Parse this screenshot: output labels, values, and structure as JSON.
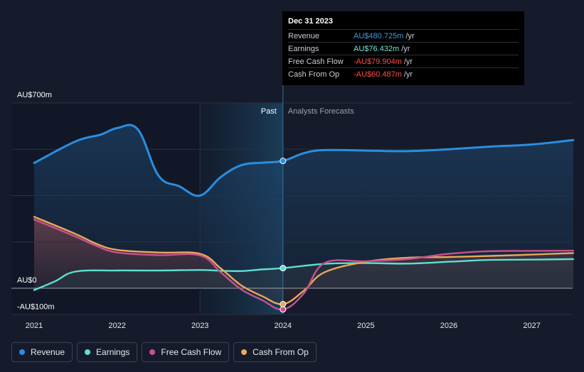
{
  "tooltip": {
    "date": "Dec 31 2023",
    "rows": [
      {
        "name": "Revenue",
        "value": "AU$480.725m",
        "unit": "/yr",
        "color": "#3d9be0"
      },
      {
        "name": "Earnings",
        "value": "AU$76.432m",
        "unit": "/yr",
        "color": "#7de3d3"
      },
      {
        "name": "Free Cash Flow",
        "value": "-AU$79.904m",
        "unit": "/yr",
        "color": "#ff4b4b"
      },
      {
        "name": "Cash From Op",
        "value": "-AU$60.487m",
        "unit": "/yr",
        "color": "#ff4b4b"
      }
    ]
  },
  "segments": {
    "past": "Past",
    "forecast": "Analysts Forecasts"
  },
  "legend": [
    {
      "label": "Revenue",
      "color": "#2a8ee0"
    },
    {
      "label": "Earnings",
      "color": "#5ee0cf"
    },
    {
      "label": "Free Cash Flow",
      "color": "#c8508f"
    },
    {
      "label": "Cash From Op",
      "color": "#e8a95a"
    }
  ],
  "chart_data": {
    "type": "line",
    "y_tick_labels": [
      "AU$700m",
      "AU$0",
      "-AU$100m"
    ],
    "ylim": [
      -100,
      700
    ],
    "xlim": [
      2021.0,
      2027.5
    ],
    "x_ticks": [
      2021,
      2022,
      2023,
      2024,
      2025,
      2026,
      2027
    ],
    "x_tick_labels": [
      "2021",
      "2022",
      "2023",
      "2024",
      "2025",
      "2026",
      "2027"
    ],
    "past_start": 2023.0,
    "past_end": 2024.0,
    "series": [
      {
        "name": "Revenue",
        "color": "#2a8ee0",
        "points": [
          [
            2021.0,
            473
          ],
          [
            2021.5,
            555
          ],
          [
            2021.8,
            580
          ],
          [
            2022.0,
            605
          ],
          [
            2022.25,
            600
          ],
          [
            2022.5,
            425
          ],
          [
            2022.75,
            385
          ],
          [
            2023.0,
            350
          ],
          [
            2023.25,
            420
          ],
          [
            2023.5,
            465
          ],
          [
            2023.75,
            474
          ],
          [
            2024.0,
            481
          ],
          [
            2024.25,
            510
          ],
          [
            2024.5,
            522
          ],
          [
            2025.0,
            520
          ],
          [
            2025.5,
            518
          ],
          [
            2026.0,
            525
          ],
          [
            2026.5,
            535
          ],
          [
            2027.0,
            543
          ],
          [
            2027.5,
            560
          ]
        ]
      },
      {
        "name": "Earnings",
        "color": "#5ee0cf",
        "points": [
          [
            2021.0,
            -7
          ],
          [
            2021.25,
            26
          ],
          [
            2021.5,
            63
          ],
          [
            2022.0,
            67
          ],
          [
            2022.5,
            67
          ],
          [
            2023.0,
            69
          ],
          [
            2023.25,
            66
          ],
          [
            2023.5,
            65
          ],
          [
            2023.75,
            71
          ],
          [
            2024.0,
            76
          ],
          [
            2024.5,
            92
          ],
          [
            2025.0,
            95
          ],
          [
            2025.5,
            93
          ],
          [
            2026.0,
            100
          ],
          [
            2026.5,
            107
          ],
          [
            2027.0,
            108
          ],
          [
            2027.5,
            110
          ]
        ]
      },
      {
        "name": "Free Cash Flow",
        "color": "#c8508f",
        "points": [
          [
            2021.0,
            260
          ],
          [
            2021.5,
            195
          ],
          [
            2021.75,
            160
          ],
          [
            2022.0,
            135
          ],
          [
            2022.5,
            125
          ],
          [
            2023.0,
            124
          ],
          [
            2023.25,
            60
          ],
          [
            2023.5,
            -5
          ],
          [
            2023.75,
            -45
          ],
          [
            2024.0,
            -80
          ],
          [
            2024.25,
            -20
          ],
          [
            2024.5,
            95
          ],
          [
            2025.0,
            102
          ],
          [
            2025.5,
            110
          ],
          [
            2026.0,
            130
          ],
          [
            2026.5,
            140
          ],
          [
            2027.0,
            141
          ],
          [
            2027.5,
            142
          ]
        ]
      },
      {
        "name": "Cash From Op",
        "color": "#e8a95a",
        "points": [
          [
            2021.0,
            270
          ],
          [
            2021.5,
            205
          ],
          [
            2021.75,
            168
          ],
          [
            2022.0,
            145
          ],
          [
            2022.5,
            135
          ],
          [
            2023.0,
            130
          ],
          [
            2023.25,
            75
          ],
          [
            2023.5,
            10
          ],
          [
            2023.75,
            -30
          ],
          [
            2024.0,
            -60
          ],
          [
            2024.25,
            -10
          ],
          [
            2024.5,
            60
          ],
          [
            2025.0,
            100
          ],
          [
            2025.5,
            115
          ],
          [
            2026.0,
            118
          ],
          [
            2026.5,
            122
          ],
          [
            2027.0,
            127
          ],
          [
            2027.5,
            133
          ]
        ]
      }
    ]
  }
}
